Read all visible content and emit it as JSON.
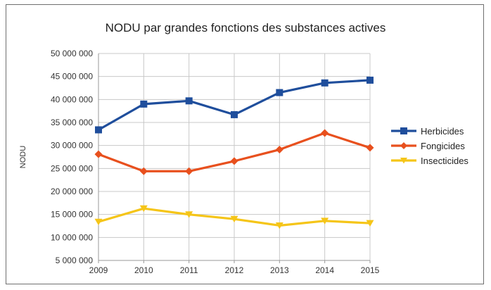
{
  "chart_data": {
    "type": "line",
    "title": "NODU par grandes fonctions des substances actives",
    "xlabel": "",
    "ylabel": "NODU",
    "x": [
      "2009",
      "2010",
      "2011",
      "2012",
      "2013",
      "2014",
      "2015"
    ],
    "ylim": [
      5000000,
      50000000
    ],
    "yticks": [
      5000000,
      10000000,
      15000000,
      20000000,
      25000000,
      30000000,
      35000000,
      40000000,
      45000000,
      50000000
    ],
    "ytick_labels": [
      "5 000 000",
      "10 000 000",
      "15 000 000",
      "20 000 000",
      "25 000 000",
      "30 000 000",
      "35 000 000",
      "40 000 000",
      "45 000 000",
      "50 000 000"
    ],
    "grid": true,
    "legend_position": "right",
    "series": [
      {
        "name": "Herbicides",
        "color": "#1f4e9c",
        "marker": "square",
        "values": [
          33400000,
          39000000,
          39700000,
          36700000,
          41500000,
          43600000,
          44200000
        ]
      },
      {
        "name": "Fongicides",
        "color": "#e8501e",
        "marker": "diamond",
        "values": [
          28100000,
          24400000,
          24400000,
          26600000,
          29100000,
          32700000,
          29500000
        ]
      },
      {
        "name": "Insecticides",
        "color": "#f5c518",
        "marker": "triangle-down",
        "values": [
          13400000,
          16300000,
          15000000,
          14000000,
          12600000,
          13600000,
          13100000
        ]
      }
    ]
  }
}
